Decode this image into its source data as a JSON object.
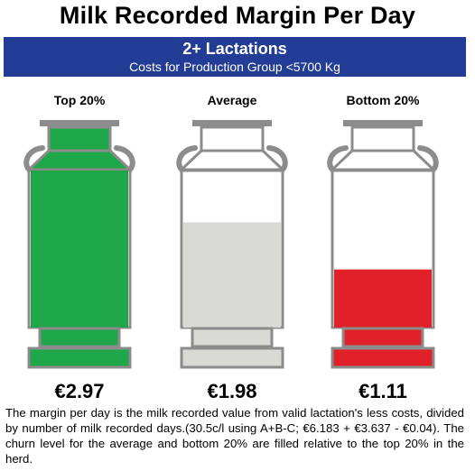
{
  "header": {
    "title": "Milk Recorded Margin Per Day",
    "banner_title": "2+ Lactations",
    "banner_subtitle": "Costs for Production Group <5700 Kg"
  },
  "chart_data": {
    "type": "bar",
    "categories": [
      "Top 20%",
      "Average",
      "Bottom 20%"
    ],
    "values": [
      2.97,
      1.98,
      1.11
    ],
    "value_labels": [
      "€2.97",
      "€1.98",
      "€1.11"
    ],
    "fill_fraction": [
      1.0,
      0.67,
      0.37
    ],
    "colors": [
      "#1fa84a",
      "#d9d9d6",
      "#e2202a"
    ],
    "outline_color": "#8c8c8c"
  },
  "footnote": "The margin per day is the milk recorded value from valid lactation's less costs, divided by number of milk recorded days.(30.5c/l using A+B-C; €6.183 + €3.637 - €0.04). The churn level for the average and bottom 20% are filled relative to the top 20% in the herd."
}
